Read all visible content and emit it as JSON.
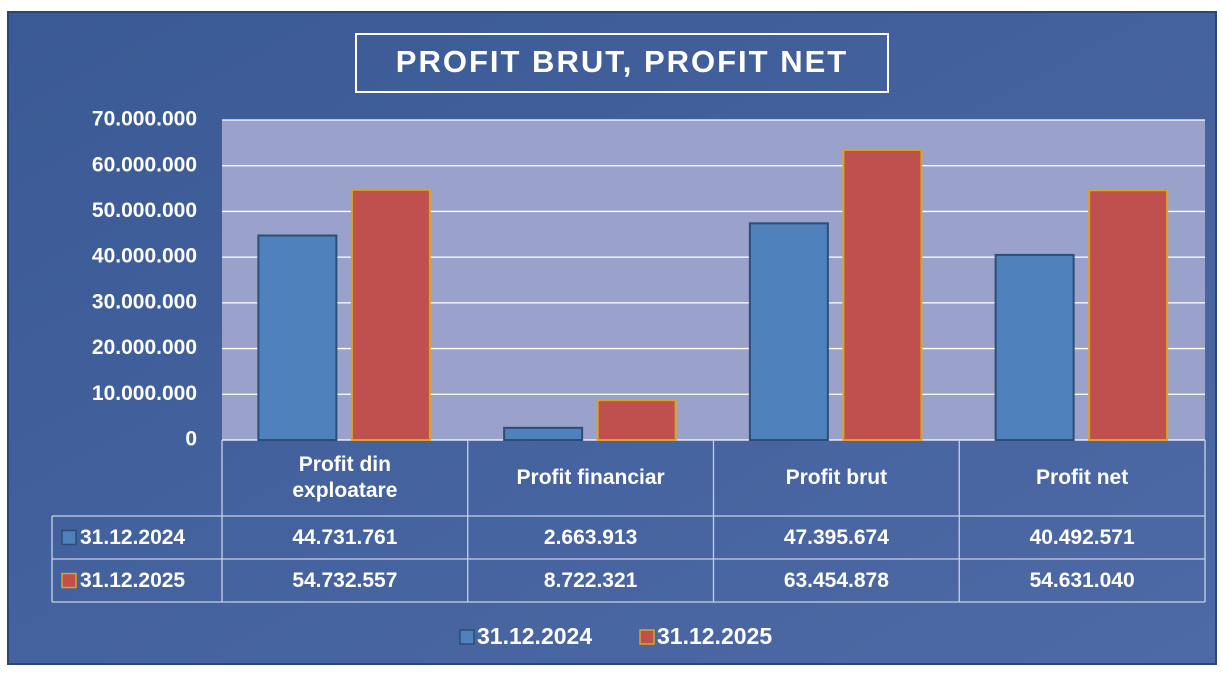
{
  "chart_data": {
    "type": "bar",
    "title": "PROFIT BRUT, PROFIT NET",
    "categories": [
      "Profit din exploatare",
      "Profit financiar",
      "Profit brut",
      "Profit net"
    ],
    "series": [
      {
        "name": "31.12.2024",
        "color": "#4f81bd",
        "values": [
          44731761,
          2663913,
          47395674,
          40492571
        ],
        "value_labels": [
          "44.731.761",
          "2.663.913",
          "47.395.674",
          "40.492.571"
        ]
      },
      {
        "name": "31.12.2025",
        "color": "#c0504d",
        "values": [
          54732557,
          8722321,
          63454878,
          54631040
        ],
        "value_labels": [
          "54.732.557",
          "8.722.321",
          "63.454.878",
          "54.631.040"
        ]
      }
    ],
    "ylim": [
      0,
      70000000
    ],
    "yticks": [
      0,
      {
        "value": 10000000,
        "label": "10.000.000"
      },
      {
        "value": 20000000,
        "label": "20.000.000"
      },
      {
        "value": 30000000,
        "label": "30.000.000"
      },
      {
        "value": 40000000,
        "label": "40.000.000"
      },
      {
        "value": 50000000,
        "label": "50.000.000"
      },
      {
        "value": 60000000,
        "label": "60.000.000"
      },
      {
        "value": 70000000,
        "label": "70.000.000"
      }
    ],
    "grid": true,
    "legend": "bottom"
  }
}
